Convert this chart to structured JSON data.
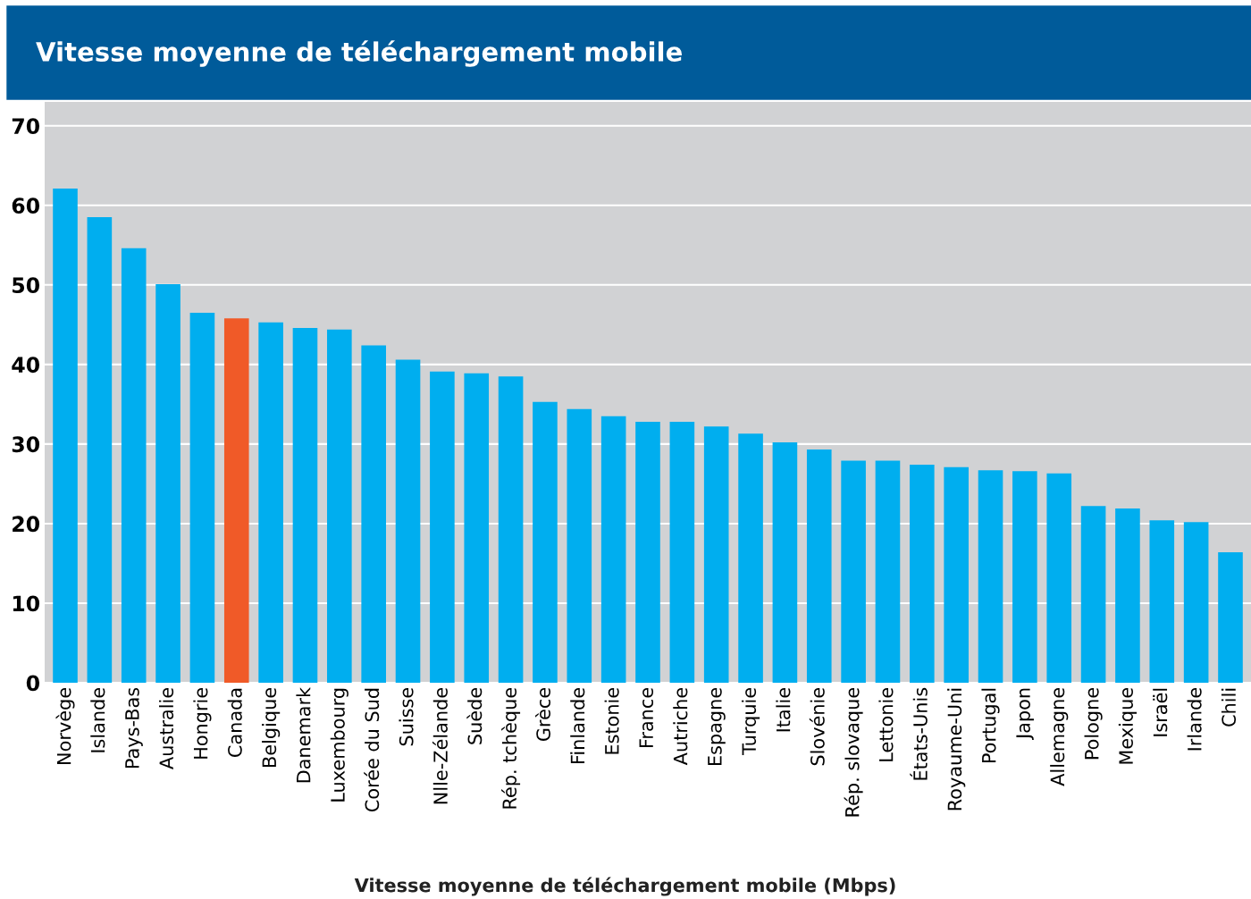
{
  "chart_data": {
    "type": "bar",
    "title": "Vitesse moyenne de téléchargement mobile",
    "xlabel": "Vitesse moyenne de téléchargement mobile (Mbps)",
    "categories": [
      "Norvège",
      "Islande",
      "Pays-Bas",
      "Australie",
      "Hongrie",
      "Canada",
      "Belgique",
      "Danemark",
      "Luxembourg",
      "Corée du Sud",
      "Suisse",
      "Nlle-Zélande",
      "Suède",
      "Rép. tchèque",
      "Grèce",
      "Finlande",
      "Estonie",
      "France",
      "Autriche",
      "Espagne",
      "Turquie",
      "Italie",
      "Slovénie",
      "Rép. slovaque",
      "Lettonie",
      "États-Unis",
      "Royaume-Uni",
      "Portugal",
      "Japon",
      "Allemagne",
      "Pologne",
      "Mexique",
      "Israël",
      "Irlande",
      "Chili"
    ],
    "values": [
      62.1,
      58.5,
      54.6,
      50.1,
      46.5,
      45.8,
      45.3,
      44.6,
      44.4,
      42.4,
      40.6,
      39.1,
      38.9,
      38.5,
      35.3,
      34.4,
      33.5,
      32.8,
      32.8,
      32.2,
      31.3,
      30.2,
      29.3,
      27.9,
      27.9,
      27.4,
      27.1,
      26.7,
      26.6,
      26.3,
      22.2,
      21.9,
      20.4,
      20.2,
      16.4
    ],
    "colors": [
      "#00aeef",
      "#00aeef",
      "#00aeef",
      "#00aeef",
      "#00aeef",
      "#f05a28",
      "#00aeef",
      "#00aeef",
      "#00aeef",
      "#00aeef",
      "#00aeef",
      "#00aeef",
      "#00aeef",
      "#00aeef",
      "#00aeef",
      "#00aeef",
      "#00aeef",
      "#00aeef",
      "#00aeef",
      "#00aeef",
      "#00aeef",
      "#00aeef",
      "#00aeef",
      "#00aeef",
      "#00aeef",
      "#00aeef",
      "#00aeef",
      "#00aeef",
      "#00aeef",
      "#00aeef",
      "#00aeef",
      "#00aeef",
      "#00aeef",
      "#00aeef",
      "#00aeef"
    ],
    "ylim": [
      0,
      73
    ],
    "yticks": [
      0,
      10,
      20,
      30,
      40,
      50,
      60,
      70
    ],
    "grid": "y",
    "legend": false
  }
}
